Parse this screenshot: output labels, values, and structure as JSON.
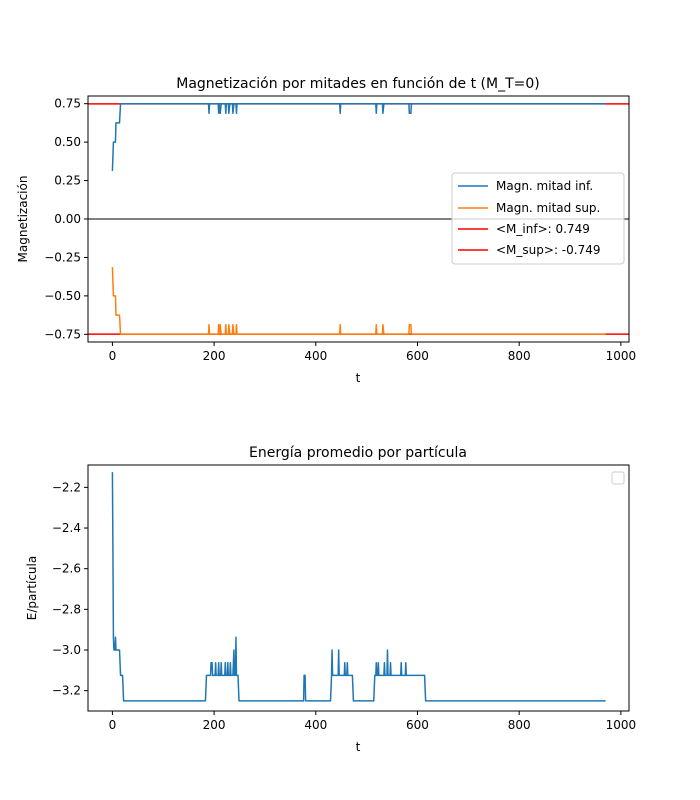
{
  "chart_data": [
    {
      "type": "line",
      "title": "Magnetización por mitades en función de t (M_T=0)",
      "xlabel": "t",
      "ylabel": "Magnetización",
      "xlim": [
        -48,
        1016
      ],
      "ylim": [
        -0.8,
        0.8
      ],
      "xticks": [
        0,
        200,
        400,
        600,
        800,
        1000
      ],
      "yticks": [
        0.75,
        0.5,
        0.25,
        0.0,
        -0.25,
        -0.5,
        -0.75
      ],
      "ytick_labels": [
        "0.75",
        "0.50",
        "0.25",
        "0.00",
        "−0.25",
        "−0.50",
        "−0.75"
      ],
      "legend_position": "center-right",
      "zero_line": 0.0,
      "series": [
        {
          "name": "Magn. mitad inf.",
          "color": "#1f77b4",
          "points": [
            [
              0,
              0.3125
            ],
            [
              2,
              0.5
            ],
            [
              6,
              0.5
            ],
            [
              7,
              0.625
            ],
            [
              14,
              0.625
            ],
            [
              16,
              0.75
            ],
            [
              189,
              0.75
            ],
            [
              190,
              0.6875
            ],
            [
              191,
              0.75
            ],
            [
              208,
              0.75
            ],
            [
              209,
              0.6875
            ],
            [
              210,
              0.75
            ],
            [
              212,
              0.6875
            ],
            [
              214,
              0.75
            ],
            [
              222,
              0.75
            ],
            [
              223,
              0.6875
            ],
            [
              224,
              0.75
            ],
            [
              228,
              0.75
            ],
            [
              229,
              0.6875
            ],
            [
              231,
              0.75
            ],
            [
              236,
              0.75
            ],
            [
              237,
              0.6875
            ],
            [
              239,
              0.75
            ],
            [
              243,
              0.75
            ],
            [
              244,
              0.6875
            ],
            [
              245,
              0.75
            ],
            [
              447,
              0.75
            ],
            [
              448,
              0.6875
            ],
            [
              449,
              0.75
            ],
            [
              518,
              0.75
            ],
            [
              519,
              0.6875
            ],
            [
              520,
              0.75
            ],
            [
              531,
              0.75
            ],
            [
              532,
              0.6875
            ],
            [
              534,
              0.75
            ],
            [
              583,
              0.75
            ],
            [
              584,
              0.6875
            ],
            [
              587,
              0.6875
            ],
            [
              588,
              0.75
            ],
            [
              970,
              0.75
            ]
          ]
        },
        {
          "name": "Magn. mitad sup.",
          "color": "#ff7f0e",
          "points": [
            [
              0,
              -0.3125
            ],
            [
              2,
              -0.5
            ],
            [
              6,
              -0.5
            ],
            [
              7,
              -0.625
            ],
            [
              14,
              -0.625
            ],
            [
              16,
              -0.75
            ],
            [
              189,
              -0.75
            ],
            [
              190,
              -0.6875
            ],
            [
              191,
              -0.75
            ],
            [
              208,
              -0.75
            ],
            [
              209,
              -0.6875
            ],
            [
              210,
              -0.75
            ],
            [
              212,
              -0.6875
            ],
            [
              214,
              -0.75
            ],
            [
              222,
              -0.75
            ],
            [
              223,
              -0.6875
            ],
            [
              224,
              -0.75
            ],
            [
              228,
              -0.75
            ],
            [
              229,
              -0.6875
            ],
            [
              231,
              -0.75
            ],
            [
              236,
              -0.75
            ],
            [
              237,
              -0.6875
            ],
            [
              239,
              -0.75
            ],
            [
              243,
              -0.75
            ],
            [
              244,
              -0.6875
            ],
            [
              245,
              -0.75
            ],
            [
              447,
              -0.75
            ],
            [
              448,
              -0.6875
            ],
            [
              449,
              -0.75
            ],
            [
              518,
              -0.75
            ],
            [
              519,
              -0.6875
            ],
            [
              520,
              -0.75
            ],
            [
              531,
              -0.75
            ],
            [
              532,
              -0.6875
            ],
            [
              534,
              -0.75
            ],
            [
              583,
              -0.75
            ],
            [
              584,
              -0.6875
            ],
            [
              587,
              -0.6875
            ],
            [
              588,
              -0.75
            ],
            [
              970,
              -0.75
            ]
          ]
        }
      ],
      "hlines": [
        {
          "name": "<M_inf>: 0.749",
          "value": 0.749,
          "color": "#ff0000"
        },
        {
          "name": "<M_sup>: -0.749",
          "value": -0.749,
          "color": "#ff0000"
        }
      ]
    },
    {
      "type": "line",
      "title": "Energía promedio por partícula",
      "xlabel": "t",
      "ylabel": "E/partícula",
      "xlim": [
        -48,
        1016
      ],
      "ylim": [
        -3.3,
        -2.09
      ],
      "xticks": [
        0,
        200,
        400,
        600,
        800,
        1000
      ],
      "yticks": [
        -2.2,
        -2.4,
        -2.6,
        -2.8,
        -3.0,
        -3.2
      ],
      "ytick_labels": [
        "−2.2",
        "−2.4",
        "−2.6",
        "−2.8",
        "−3.0",
        "−3.2"
      ],
      "legend_position": "top-right",
      "series": [
        {
          "color": "#1f77b4",
          "points": [
            [
              0,
              -2.125
            ],
            [
              1,
              -2.5
            ],
            [
              2,
              -2.9375
            ],
            [
              3,
              -3.0
            ],
            [
              5,
              -3.0
            ],
            [
              6,
              -2.9375
            ],
            [
              7,
              -3.0
            ],
            [
              14,
              -3.0
            ],
            [
              16,
              -3.125
            ],
            [
              20,
              -3.125
            ],
            [
              22,
              -3.25
            ],
            [
              183,
              -3.25
            ],
            [
              185,
              -3.125
            ],
            [
              193,
              -3.125
            ],
            [
              194,
              -3.0625
            ],
            [
              196,
              -3.0625
            ],
            [
              197,
              -3.125
            ],
            [
              202,
              -3.125
            ],
            [
              203,
              -3.0625
            ],
            [
              204,
              -3.125
            ],
            [
              208,
              -3.125
            ],
            [
              209,
              -3.0625
            ],
            [
              210,
              -3.125
            ],
            [
              213,
              -3.125
            ],
            [
              214,
              -3.0625
            ],
            [
              215,
              -3.125
            ],
            [
              221,
              -3.125
            ],
            [
              222,
              -3.0625
            ],
            [
              223,
              -3.125
            ],
            [
              226,
              -3.125
            ],
            [
              227,
              -3.0625
            ],
            [
              228,
              -3.125
            ],
            [
              231,
              -3.125
            ],
            [
              232,
              -3.0625
            ],
            [
              233,
              -3.125
            ],
            [
              237,
              -3.125
            ],
            [
              238,
              -3.0625
            ],
            [
              239,
              -3.0
            ],
            [
              240,
              -3.125
            ],
            [
              242,
              -3.125
            ],
            [
              243,
              -2.9375
            ],
            [
              244,
              -3.125
            ],
            [
              247,
              -3.125
            ],
            [
              249,
              -3.25
            ],
            [
              376,
              -3.25
            ],
            [
              377,
              -3.125
            ],
            [
              379,
              -3.125
            ],
            [
              380,
              -3.25
            ],
            [
              429,
              -3.25
            ],
            [
              431,
              -3.125
            ],
            [
              432,
              -3.0
            ],
            [
              433,
              -3.125
            ],
            [
              444,
              -3.125
            ],
            [
              445,
              -3.0
            ],
            [
              446,
              -3.125
            ],
            [
              456,
              -3.125
            ],
            [
              457,
              -3.0625
            ],
            [
              458,
              -3.125
            ],
            [
              461,
              -3.125
            ],
            [
              462,
              -3.0625
            ],
            [
              463,
              -3.125
            ],
            [
              472,
              -3.125
            ],
            [
              474,
              -3.25
            ],
            [
              514,
              -3.25
            ],
            [
              516,
              -3.125
            ],
            [
              518,
              -3.125
            ],
            [
              519,
              -3.0625
            ],
            [
              520,
              -3.125
            ],
            [
              522,
              -3.125
            ],
            [
              523,
              -3.0625
            ],
            [
              524,
              -3.125
            ],
            [
              534,
              -3.125
            ],
            [
              535,
              -3.0625
            ],
            [
              536,
              -3.125
            ],
            [
              540,
              -3.125
            ],
            [
              541,
              -3.0
            ],
            [
              542,
              -3.125
            ],
            [
              546,
              -3.125
            ],
            [
              547,
              -3.0625
            ],
            [
              548,
              -3.125
            ],
            [
              567,
              -3.125
            ],
            [
              568,
              -3.0625
            ],
            [
              569,
              -3.125
            ],
            [
              576,
              -3.125
            ],
            [
              577,
              -3.0625
            ],
            [
              578,
              -3.125
            ],
            [
              614,
              -3.125
            ],
            [
              616,
              -3.25
            ],
            [
              970,
              -3.25
            ]
          ]
        }
      ]
    }
  ]
}
